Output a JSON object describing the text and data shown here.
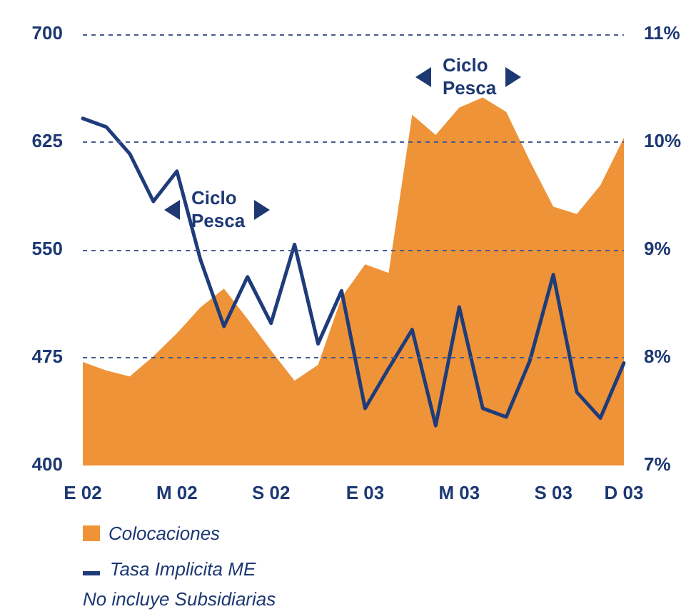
{
  "chart_data": {
    "type": "area",
    "categories": [
      "E 02",
      null,
      null,
      null,
      "M 02",
      null,
      null,
      null,
      "S 02",
      null,
      null,
      null,
      "E 03",
      null,
      null,
      null,
      "M 03",
      null,
      null,
      null,
      "S 03",
      null,
      null,
      "D 03"
    ],
    "series": [
      {
        "name": "Colocaciones",
        "color": "#ee9338",
        "values": [
          472,
          466,
          462,
          476,
          492,
          510,
          523,
          502,
          480,
          459,
          470,
          517,
          540,
          534,
          644,
          630,
          649,
          656,
          646,
          612,
          580,
          575,
          595,
          628
        ]
      },
      {
        "name": "Tasa Implicita ME",
        "type": "line",
        "axis": "y2",
        "color": "#1f3c7a",
        "values": [
          10.22,
          10.14,
          9.89,
          9.45,
          9.73,
          8.91,
          8.29,
          8.75,
          8.32,
          9.05,
          8.13,
          8.62,
          7.53,
          7.9,
          8.26,
          7.37,
          8.47,
          7.53,
          7.45,
          7.97,
          8.77,
          7.68,
          7.44,
          7.95
        ]
      }
    ],
    "ylim": [
      400,
      700
    ],
    "yticks": [
      400,
      475,
      550,
      625,
      700
    ],
    "y2lim": [
      7,
      11
    ],
    "y2ticks": [
      {
        "value": 7,
        "label": "7%"
      },
      {
        "value": 8,
        "label": "8%"
      },
      {
        "value": 9,
        "label": "9%"
      },
      {
        "value": 10,
        "label": "10%"
      },
      {
        "value": 11,
        "label": "11%"
      }
    ],
    "grid": "y",
    "legend": "bottom",
    "annotations": [
      "Ciclo Pesca",
      "Ciclo Pesca",
      "No incluye Subsidiarias"
    ]
  }
}
